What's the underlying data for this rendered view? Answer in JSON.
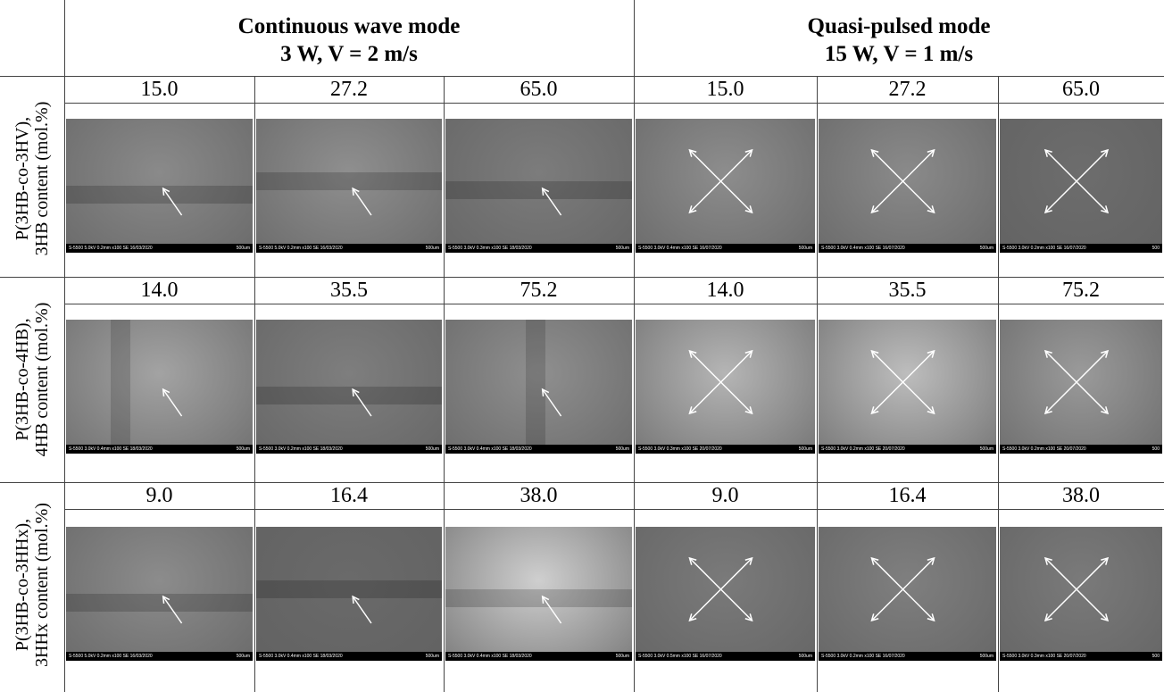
{
  "header": {
    "columns": [
      {
        "title": "Continuous wave mode",
        "subtitle": "3 W, V = 2 m/s"
      },
      {
        "title": "Quasi-pulsed mode",
        "subtitle": "15 W, V = 1 m/s"
      }
    ]
  },
  "rows": [
    {
      "polymer": "P(3HB-co-3HV),",
      "content_label": "3HB content (mol.%)",
      "cells": [
        {
          "content": "15.0",
          "info": "S-5500 5.0kV 0.2mm x100 SE 16/03/2020",
          "scale": "500um"
        },
        {
          "content": "27.2",
          "info": "S-5500 5.0kV 0.2mm x100 SE 16/03/2020",
          "scale": "500um"
        },
        {
          "content": "65.0",
          "info": "S-5500 3.0kV 0.3mm x100 SE 18/03/2020",
          "scale": "500um"
        },
        {
          "content": "15.0",
          "info": "S-5500 3.0kV 0.4mm x100 SE 16/07/2020",
          "scale": "500um"
        },
        {
          "content": "27.2",
          "info": "S-5500 3.0kV 0.4mm x100 SE 16/07/2020",
          "scale": "500um"
        },
        {
          "content": "65.0",
          "info": "S-5500 3.0kV 0.2mm x100 SE 16/07/2020",
          "scale": "500"
        }
      ]
    },
    {
      "polymer": "P(3HB-co-4HB),",
      "content_label": "4HB content (mol.%)",
      "cells": [
        {
          "content": "14.0",
          "info": "S-5500 3.0kV 0.4mm x100 SE 18/03/2020",
          "scale": "500um"
        },
        {
          "content": "35.5",
          "info": "S-5500 3.0kV 0.2mm x100 SE 18/03/2020",
          "scale": "500um"
        },
        {
          "content": "75.2",
          "info": "S-5500 3.0kV 0.4mm x100 SE 18/03/2020",
          "scale": "500um"
        },
        {
          "content": "14.0",
          "info": "S-5500 3.0kV 0.3mm x100 SE 20/07/2020",
          "scale": "500um"
        },
        {
          "content": "35.5",
          "info": "S-5500 3.0kV 0.2mm x100 SE 20/07/2020",
          "scale": "500um"
        },
        {
          "content": "75.2",
          "info": "S-5500 3.0kV 0.2mm x100 SE 20/07/2020",
          "scale": "500"
        }
      ]
    },
    {
      "polymer": "P(3HB-co-3HHx),",
      "content_label": "3HHx content (mol.%)",
      "cells": [
        {
          "content": "9.0",
          "info": "S-5500 5.0kV 0.2mm x100 SE 16/03/2020",
          "scale": "500um"
        },
        {
          "content": "16.4",
          "info": "S-5500 3.0kV 0.4mm x100 SE 18/03/2020",
          "scale": "500um"
        },
        {
          "content": "38.0",
          "info": "S-5500 3.0kV 0.4mm x100 SE 18/03/2020",
          "scale": "500um"
        },
        {
          "content": "9.0",
          "info": "S-5500 3.0kV 0.5mm x100 SE 16/07/2020",
          "scale": "500um"
        },
        {
          "content": "16.4",
          "info": "S-5500 3.0kV 0.2mm x100 SE 16/07/2020",
          "scale": "500um"
        },
        {
          "content": "38.0",
          "info": "S-5500 3.0kV 0.3mm x100 SE 20/07/2020",
          "scale": "500"
        }
      ]
    }
  ]
}
